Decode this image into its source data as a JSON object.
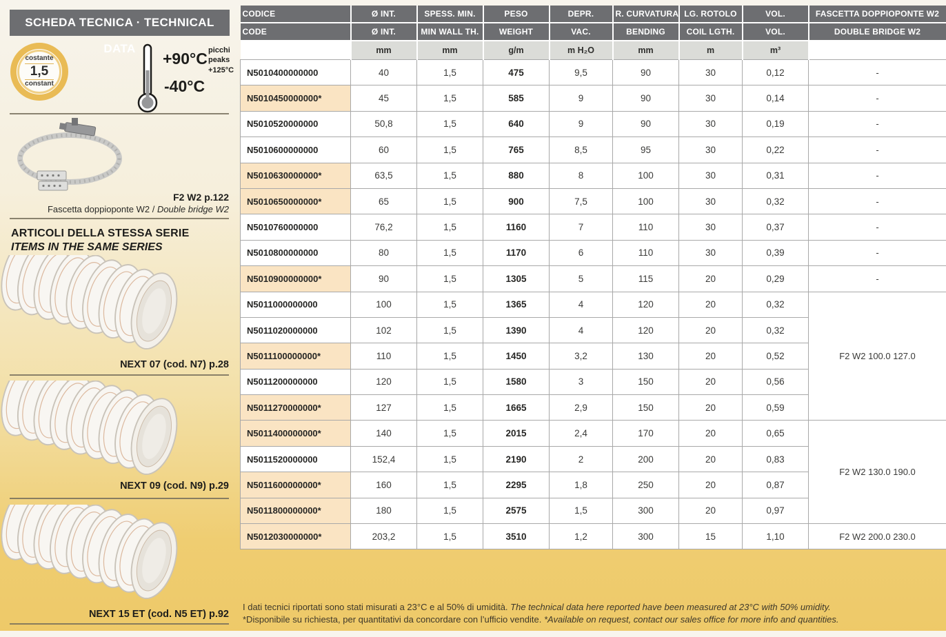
{
  "sidebar": {
    "header": "SCHEDA TECNICA · TECHNICAL DATA",
    "badge": {
      "label_it": "costante",
      "value": "1,5",
      "label_en": "constant"
    },
    "temperature": {
      "max": "+90°C",
      "min": "-40°C",
      "peaks_it": "picchi",
      "peaks_en": "peaks",
      "peaks_value": "+125°C"
    },
    "clamp": {
      "ref": "F2 W2 p.122",
      "caption_it": "Fascetta doppioponte W2",
      "caption_sep": " / ",
      "caption_en": "Double bridge W2"
    },
    "series": {
      "title_it": "ARTICOLI DELLA STESSA SERIE",
      "title_en": "ITEMS IN THE SAME SERIES",
      "items": [
        {
          "label": "NEXT 07 (cod. N7) p.28"
        },
        {
          "label": "NEXT 09 (cod. N9) p.29"
        },
        {
          "label": "NEXT 15 ET (cod. N5 ET) p.92"
        }
      ]
    }
  },
  "table": {
    "headers_row1": [
      "CODICE",
      "Ø INT.",
      "SPESS. MIN.",
      "PESO",
      "DEPR.",
      "R. CURVATURA",
      "LG. ROTOLO",
      "VOL.",
      "FASCETTA DOPPIOPONTE W2"
    ],
    "headers_row2": [
      "CODE",
      "Ø INT.",
      "MIN WALL TH.",
      "WEIGHT",
      "VAC.",
      "BENDING",
      "COIL LGTH.",
      "VOL.",
      "DOUBLE BRIDGE W2"
    ],
    "units": [
      "",
      "mm",
      "mm",
      "g/m",
      "m H₂O",
      "mm",
      "m",
      "m³",
      ""
    ],
    "rows": [
      {
        "code": "N5010400000000",
        "d_int": "40",
        "wall": "1,5",
        "weight": "475",
        "vac": "9,5",
        "bending": "90",
        "coil": "30",
        "vol": "0,12",
        "bridge": {
          "label": "-",
          "span": 1
        }
      },
      {
        "code": "N5010450000000*",
        "d_int": "45",
        "wall": "1,5",
        "weight": "585",
        "vac": "9",
        "bending": "90",
        "coil": "30",
        "vol": "0,14",
        "bridge": {
          "label": "-",
          "span": 1
        }
      },
      {
        "code": "N5010520000000",
        "d_int": "50,8",
        "wall": "1,5",
        "weight": "640",
        "vac": "9",
        "bending": "90",
        "coil": "30",
        "vol": "0,19",
        "bridge": {
          "label": "-",
          "span": 1
        }
      },
      {
        "code": "N5010600000000",
        "d_int": "60",
        "wall": "1,5",
        "weight": "765",
        "vac": "8,5",
        "bending": "95",
        "coil": "30",
        "vol": "0,22",
        "bridge": {
          "label": "-",
          "span": 1
        }
      },
      {
        "code": "N5010630000000*",
        "d_int": "63,5",
        "wall": "1,5",
        "weight": "880",
        "vac": "8",
        "bending": "100",
        "coil": "30",
        "vol": "0,31",
        "bridge": {
          "label": "-",
          "span": 1
        }
      },
      {
        "code": "N5010650000000*",
        "d_int": "65",
        "wall": "1,5",
        "weight": "900",
        "vac": "7,5",
        "bending": "100",
        "coil": "30",
        "vol": "0,32",
        "bridge": {
          "label": "-",
          "span": 1
        }
      },
      {
        "code": "N5010760000000",
        "d_int": "76,2",
        "wall": "1,5",
        "weight": "1160",
        "vac": "7",
        "bending": "110",
        "coil": "30",
        "vol": "0,37",
        "bridge": {
          "label": "-",
          "span": 1
        }
      },
      {
        "code": "N5010800000000",
        "d_int": "80",
        "wall": "1,5",
        "weight": "1170",
        "vac": "6",
        "bending": "110",
        "coil": "30",
        "vol": "0,39",
        "bridge": {
          "label": "-",
          "span": 1
        }
      },
      {
        "code": "N5010900000000*",
        "d_int": "90",
        "wall": "1,5",
        "weight": "1305",
        "vac": "5",
        "bending": "115",
        "coil": "20",
        "vol": "0,29",
        "bridge": {
          "label": "-",
          "span": 1
        }
      },
      {
        "code": "N5011000000000",
        "d_int": "100",
        "wall": "1,5",
        "weight": "1365",
        "vac": "4",
        "bending": "120",
        "coil": "20",
        "vol": "0,32",
        "bridge": {
          "label": "F2 W2 100.0 127.0",
          "span": 5
        }
      },
      {
        "code": "N5011020000000",
        "d_int": "102",
        "wall": "1,5",
        "weight": "1390",
        "vac": "4",
        "bending": "120",
        "coil": "20",
        "vol": "0,32"
      },
      {
        "code": "N5011100000000*",
        "d_int": "110",
        "wall": "1,5",
        "weight": "1450",
        "vac": "3,2",
        "bending": "130",
        "coil": "20",
        "vol": "0,52"
      },
      {
        "code": "N5011200000000",
        "d_int": "120",
        "wall": "1,5",
        "weight": "1580",
        "vac": "3",
        "bending": "150",
        "coil": "20",
        "vol": "0,56"
      },
      {
        "code": "N5011270000000*",
        "d_int": "127",
        "wall": "1,5",
        "weight": "1665",
        "vac": "2,9",
        "bending": "150",
        "coil": "20",
        "vol": "0,59"
      },
      {
        "code": "N5011400000000*",
        "d_int": "140",
        "wall": "1,5",
        "weight": "2015",
        "vac": "2,4",
        "bending": "170",
        "coil": "20",
        "vol": "0,65",
        "bridge": {
          "label": "F2 W2 130.0 190.0",
          "span": 4
        }
      },
      {
        "code": "N5011520000000",
        "d_int": "152,4",
        "wall": "1,5",
        "weight": "2190",
        "vac": "2",
        "bending": "200",
        "coil": "20",
        "vol": "0,83"
      },
      {
        "code": "N5011600000000*",
        "d_int": "160",
        "wall": "1,5",
        "weight": "2295",
        "vac": "1,8",
        "bending": "250",
        "coil": "20",
        "vol": "0,87"
      },
      {
        "code": "N5011800000000*",
        "d_int": "180",
        "wall": "1,5",
        "weight": "2575",
        "vac": "1,5",
        "bending": "300",
        "coil": "20",
        "vol": "0,97"
      },
      {
        "code": "N5012030000000*",
        "d_int": "203,2",
        "wall": "1,5",
        "weight": "3510",
        "vac": "1,2",
        "bending": "300",
        "coil": "15",
        "vol": "1,10",
        "bridge": {
          "label": "F2 W2 200.0 230.0",
          "span": 1
        }
      }
    ]
  },
  "footer": {
    "line1_it": "I dati tecnici riportati sono stati misurati a 23°C e al 50% di umidità. ",
    "line1_en": "The technical data here reported have been measured at 23°C with 50% umidity.",
    "line2_it": "*Disponibile su richiesta, per quantitativi da concordare con l’ufficio vendite. ",
    "line2_en": "*Available on request, contact our sales office for more info and quantities."
  },
  "colors": {
    "accent_gold": "#eec968",
    "ring_gold": "#e9bb55",
    "header_gray": "#6d6e71",
    "units_gray": "#dbdcd8",
    "highlight_beige": "#fae4c3",
    "table_border": "#a8a8a8"
  }
}
